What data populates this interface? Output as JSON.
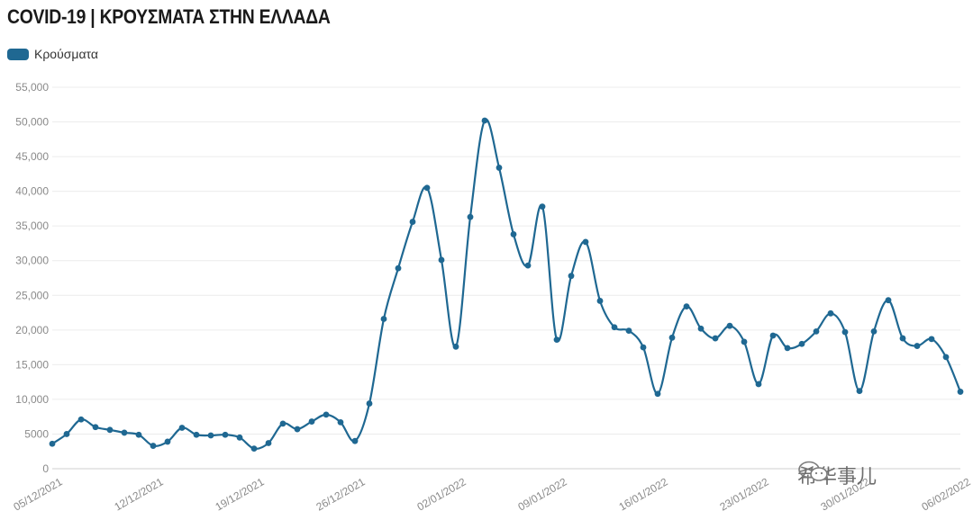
{
  "title": "COVID-19 | ΚΡΟΥΣΜΑΤΑ ΣΤΗΝ ΕΛΛΑΔΑ",
  "legend": {
    "label": "Κρούσματα",
    "color": "#1f6892"
  },
  "watermark": {
    "text": "希华事儿",
    "icon": "wechat-icon"
  },
  "chart_data": {
    "type": "line",
    "title": "COVID-19 | ΚΡΟΥΣΜΑΤΑ ΣΤΗΝ ΕΛΛΑΔΑ",
    "xlabel": "",
    "ylabel": "",
    "ylim": [
      0,
      55000
    ],
    "yticks": [
      "0",
      "5000",
      "10,000",
      "15,000",
      "20,000",
      "25,000",
      "30,000",
      "35,000",
      "40,000",
      "45,000",
      "50,000",
      "55,000"
    ],
    "xticks": [
      "05/12/2021",
      "12/12/2021",
      "19/12/2021",
      "26/12/2021",
      "02/01/2022",
      "09/01/2022",
      "16/01/2022",
      "23/01/2022",
      "30/01/2022",
      "06/02/2022"
    ],
    "grid": true,
    "legend_position": "top-left",
    "series": [
      {
        "name": "Κρούσματα",
        "color": "#1f6892",
        "values": [
          3600,
          5000,
          7100,
          6000,
          5600,
          5200,
          4900,
          3300,
          3900,
          5900,
          4900,
          4800,
          4900,
          4500,
          2900,
          3700,
          6500,
          5700,
          6800,
          7800,
          6700,
          4000,
          9400,
          21600,
          28900,
          35600,
          40500,
          30100,
          17600,
          36300,
          50200,
          43400,
          33800,
          29300,
          37800,
          18600,
          27800,
          32700,
          24200,
          20400,
          19900,
          17500,
          10800,
          18900,
          23400,
          20200,
          18800,
          20600,
          18300,
          12200,
          19200,
          17400,
          18000,
          19800,
          22400,
          19700,
          11200,
          19800,
          24300,
          18800,
          17700,
          18700,
          16100,
          11100
        ]
      }
    ]
  }
}
